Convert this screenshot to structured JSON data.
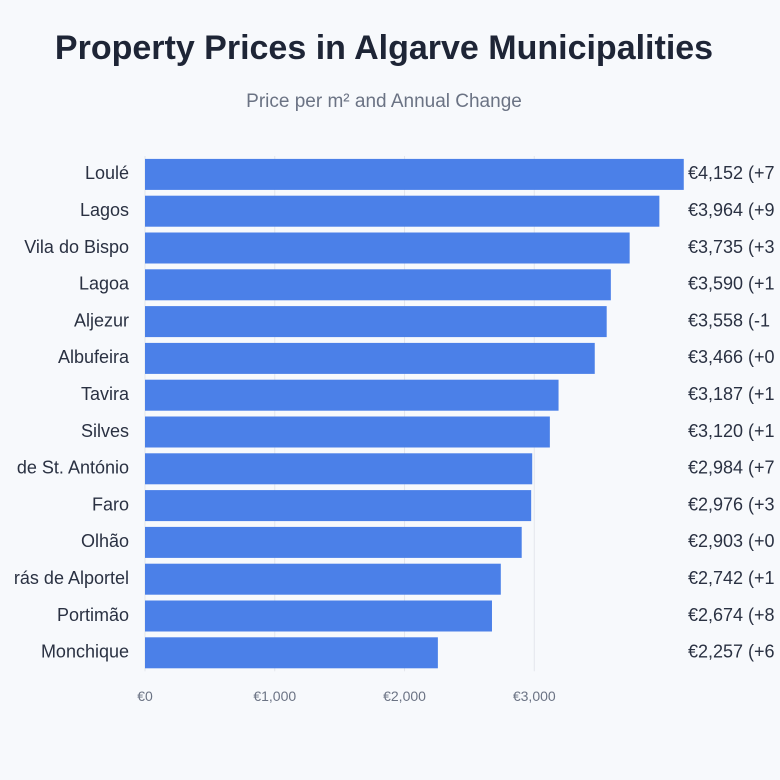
{
  "chart_data": {
    "type": "bar",
    "orientation": "horizontal",
    "title": "Property Prices in Algarve Municipalities",
    "subtitle": "Price per m² and Annual Change",
    "categories": [
      "Loulé",
      "Lagos",
      "Vila do Bispo",
      "Lagoa",
      "Aljezur",
      "Albufeira",
      "Tavira",
      "Silves",
      "de St. António",
      "Faro",
      "Olhão",
      "rás de Alportel",
      "Portimão",
      "Monchique"
    ],
    "values": [
      4152,
      3964,
      3735,
      3590,
      3558,
      3466,
      3187,
      3120,
      2984,
      2976,
      2903,
      2742,
      2674,
      2257
    ],
    "value_labels": [
      "€4,152 (+7",
      "€3,964 (+9",
      "€3,735 (+3",
      "€3,590 (+1",
      "€3,558 (-1",
      "€3,466 (+0",
      "€3,187 (+1",
      "€3,120 (+1",
      "€2,984 (+7",
      "€2,976 (+3",
      "€2,903 (+0",
      "€2,742 (+1",
      "€2,674 (+8",
      "€2,257 (+6"
    ],
    "color": "#4b80e8",
    "xlim": [
      0,
      4200
    ],
    "xticks": [
      {
        "value": 0,
        "label": "€0"
      },
      {
        "value": 1000,
        "label": "€1,000"
      },
      {
        "value": 2000,
        "label": "€2,000"
      },
      {
        "value": 3000,
        "label": "€3,000"
      }
    ],
    "grid": true
  }
}
